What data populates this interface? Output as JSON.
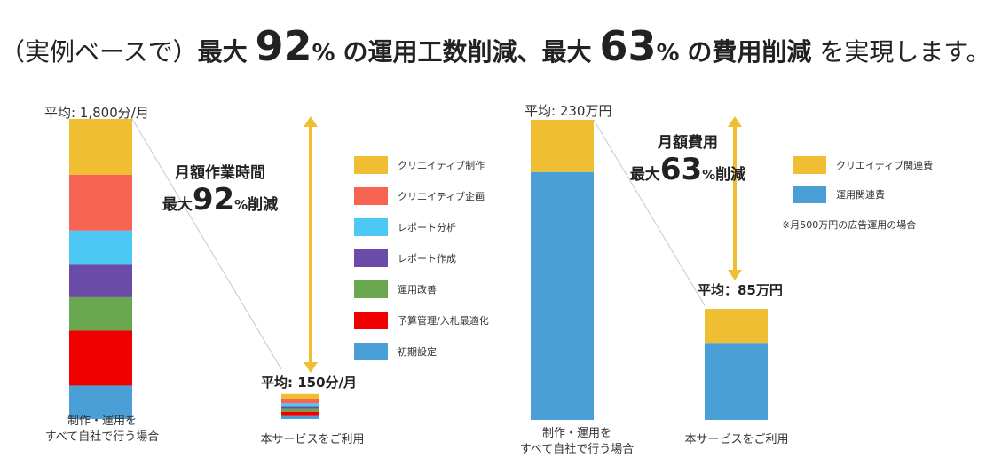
{
  "headline": {
    "prefix": "（実例ベースで）",
    "part1": "最大",
    "num1": "92",
    "pct1": "%",
    "part2": "の運用工数削減、最大",
    "num2": "63",
    "pct2": "%",
    "part3": "の費用削減",
    "suffix": "を実現します。"
  },
  "left": {
    "avg_before": "平均: 1,800分/月",
    "avg_after": "平均: 150分/月",
    "caption_before_line1": "制作・運用を",
    "caption_before_line2": "すべて自社で行う場合",
    "caption_after": "本サービスをご利用",
    "callout_line1": "月額作業時間",
    "callout_prefix": "最大",
    "callout_num": "92",
    "callout_pct": "%",
    "callout_suffix": "削減"
  },
  "right": {
    "avg_before": "平均: 230万円",
    "avg_after": "平均：85万円",
    "caption_before_line1": "制作・運用を",
    "caption_before_line2": "すべて自社で行う場合",
    "caption_after": "本サービスをご利用",
    "callout_line1": "月額費用",
    "callout_prefix": "最大",
    "callout_num": "63",
    "callout_pct": "%",
    "callout_suffix": "削減",
    "note": "※月500万円の広告運用の場合"
  },
  "chart_data": [
    {
      "type": "bar",
      "stacked": true,
      "title": "月額作業時間",
      "unit": "分/月",
      "categories": [
        "制作・運用をすべて自社で行う場合",
        "本サービスをご利用"
      ],
      "totals": [
        1800,
        150
      ],
      "series": [
        {
          "name": "クリエイティブ制作",
          "color": "#F0BE32",
          "values": [
            335,
            28
          ]
        },
        {
          "name": "クリエイティブ企画",
          "color": "#F86452",
          "values": [
            335,
            28
          ]
        },
        {
          "name": "レポート分析",
          "color": "#4BC8F4",
          "values": [
            200,
            17
          ]
        },
        {
          "name": "レポート作成",
          "color": "#6B4BA8",
          "values": [
            200,
            16
          ]
        },
        {
          "name": "運用改善",
          "color": "#6AA84F",
          "values": [
            200,
            17
          ]
        },
        {
          "name": "予算管理/入札最適化",
          "color": "#F10000",
          "values": [
            330,
            27
          ]
        },
        {
          "name": "初期設定",
          "color": "#4A9FD6",
          "values": [
            200,
            17
          ]
        }
      ],
      "annotation": "最大92%削減"
    },
    {
      "type": "bar",
      "stacked": true,
      "title": "月額費用",
      "unit": "万円",
      "categories": [
        "制作・運用をすべて自社で行う場合",
        "本サービスをご利用"
      ],
      "totals": [
        230,
        85
      ],
      "series": [
        {
          "name": "クリエイティブ関連費",
          "color": "#F0BE32",
          "values": [
            40,
            26
          ]
        },
        {
          "name": "運用関連費",
          "color": "#4A9FD6",
          "values": [
            190,
            59
          ]
        }
      ],
      "annotation": "最大63%削減"
    }
  ],
  "arrow_color": "#F0BE32"
}
